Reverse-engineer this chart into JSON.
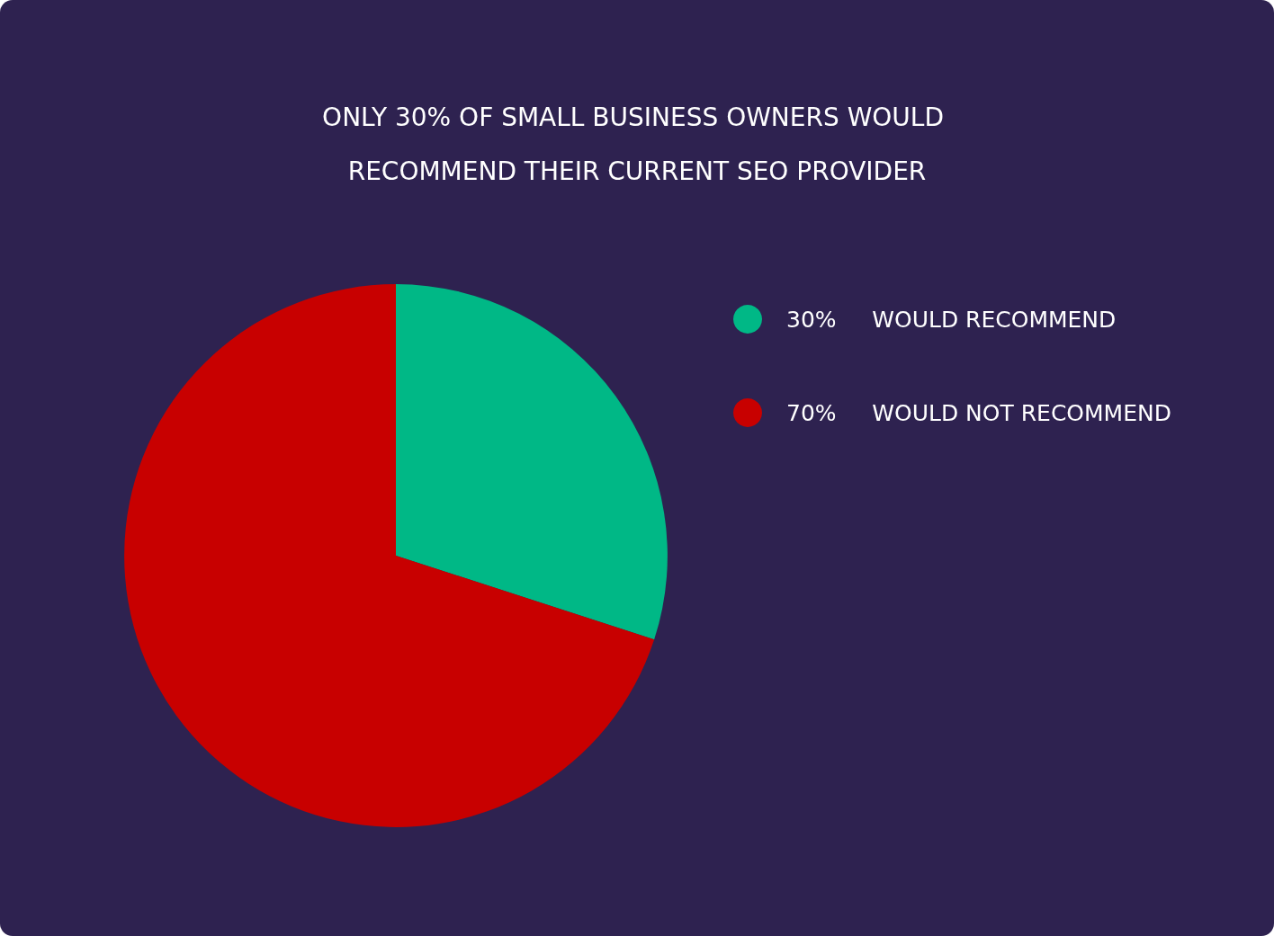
{
  "chart_data": {
    "type": "pie",
    "title": "ONLY 30% OF SMALL BUSINESS OWNERS WOULD RECOMMEND THEIR CURRENT SEO PROVIDER",
    "categories": [
      "WOULD RECOMMEND",
      "WOULD NOT RECOMMEND"
    ],
    "values": [
      30,
      70
    ],
    "value_labels": [
      "30%",
      "70%"
    ],
    "colors": [
      "#00b886",
      "#c80000"
    ],
    "legend": "top right"
  }
}
